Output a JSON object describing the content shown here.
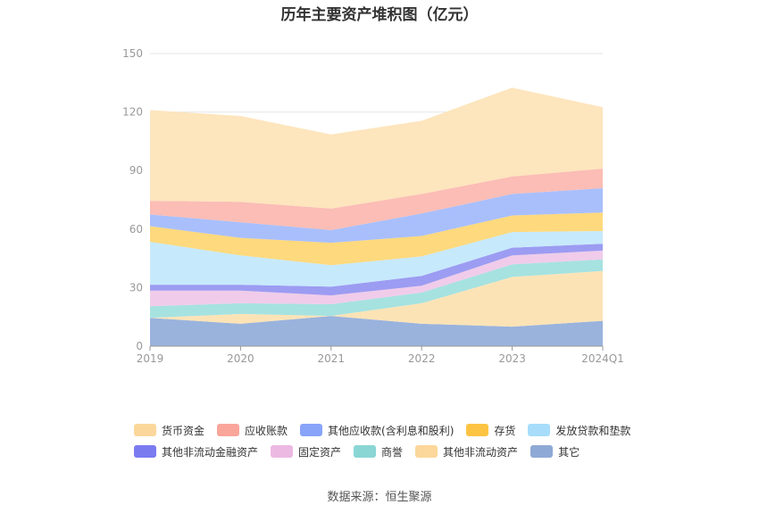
{
  "chart_data": {
    "type": "area",
    "stacked": true,
    "title": "历年主要资产堆积图（亿元）",
    "categories": [
      "2019",
      "2020",
      "2021",
      "2022",
      "2023",
      "2024Q1"
    ],
    "ylim": [
      0,
      150
    ],
    "yticks": [
      0,
      30,
      60,
      90,
      120,
      150
    ],
    "grid": true,
    "legend_position": "bottom",
    "series": [
      {
        "name": "其它",
        "color": "#9ab3dd",
        "values": [
          14.5,
          11.5,
          15.5,
          11.5,
          10.0,
          13.0
        ]
      },
      {
        "name": "其他非流动资产",
        "color": "#fce3b6",
        "values": [
          0.0,
          5.0,
          0.0,
          10.5,
          25.5,
          25.5
        ]
      },
      {
        "name": "商誉",
        "color": "#a6e2e0",
        "values": [
          6.0,
          5.5,
          6.0,
          5.5,
          6.5,
          6.0
        ]
      },
      {
        "name": "固定资产",
        "color": "#f0ccea",
        "values": [
          8.0,
          6.5,
          4.5,
          3.5,
          4.5,
          4.5
        ]
      },
      {
        "name": "其他非流动金融资产",
        "color": "#9c9cf2",
        "values": [
          3.0,
          3.0,
          4.5,
          5.0,
          4.0,
          3.5
        ]
      },
      {
        "name": "发放贷款和垫款",
        "color": "#c7e9fc",
        "values": [
          22.0,
          15.0,
          11.0,
          10.0,
          8.0,
          6.5
        ]
      },
      {
        "name": "存货",
        "color": "#fed97d",
        "values": [
          8.0,
          9.0,
          11.5,
          10.5,
          8.5,
          9.5
        ]
      },
      {
        "name": "其他应收款(含利息和股利)",
        "color": "#a9bffc",
        "values": [
          6.0,
          8.0,
          6.5,
          11.5,
          11.0,
          12.5
        ]
      },
      {
        "name": "应收账款",
        "color": "#fbbdb5",
        "values": [
          7.0,
          10.5,
          11.0,
          10.0,
          9.0,
          10.0
        ]
      },
      {
        "name": "货币资金",
        "color": "#fde5bd",
        "values": [
          46.5,
          44.0,
          38.0,
          37.5,
          45.5,
          31.5
        ]
      }
    ],
    "legend_order": [
      "货币资金",
      "应收账款",
      "其他应收款(含利息和股利)",
      "存货",
      "发放贷款和垫款",
      "其他非流动金融资产",
      "固定资产",
      "商誉",
      "其他非流动资产",
      "其它"
    ],
    "legend_colors": {
      "货币资金": "#fcd79b",
      "应收账款": "#f9a59a",
      "其他应收款(含利息和股利)": "#88a4f9",
      "存货": "#fdc443",
      "发放贷款和垫款": "#a7ddfb",
      "其他非流动金融资产": "#7b7bf0",
      "固定资产": "#ecb9e2",
      "商誉": "#8ad6d4",
      "其他非流动资产": "#fcd79b",
      "其它": "#8fa9d6"
    }
  },
  "source_text": "数据来源：恒生聚源"
}
